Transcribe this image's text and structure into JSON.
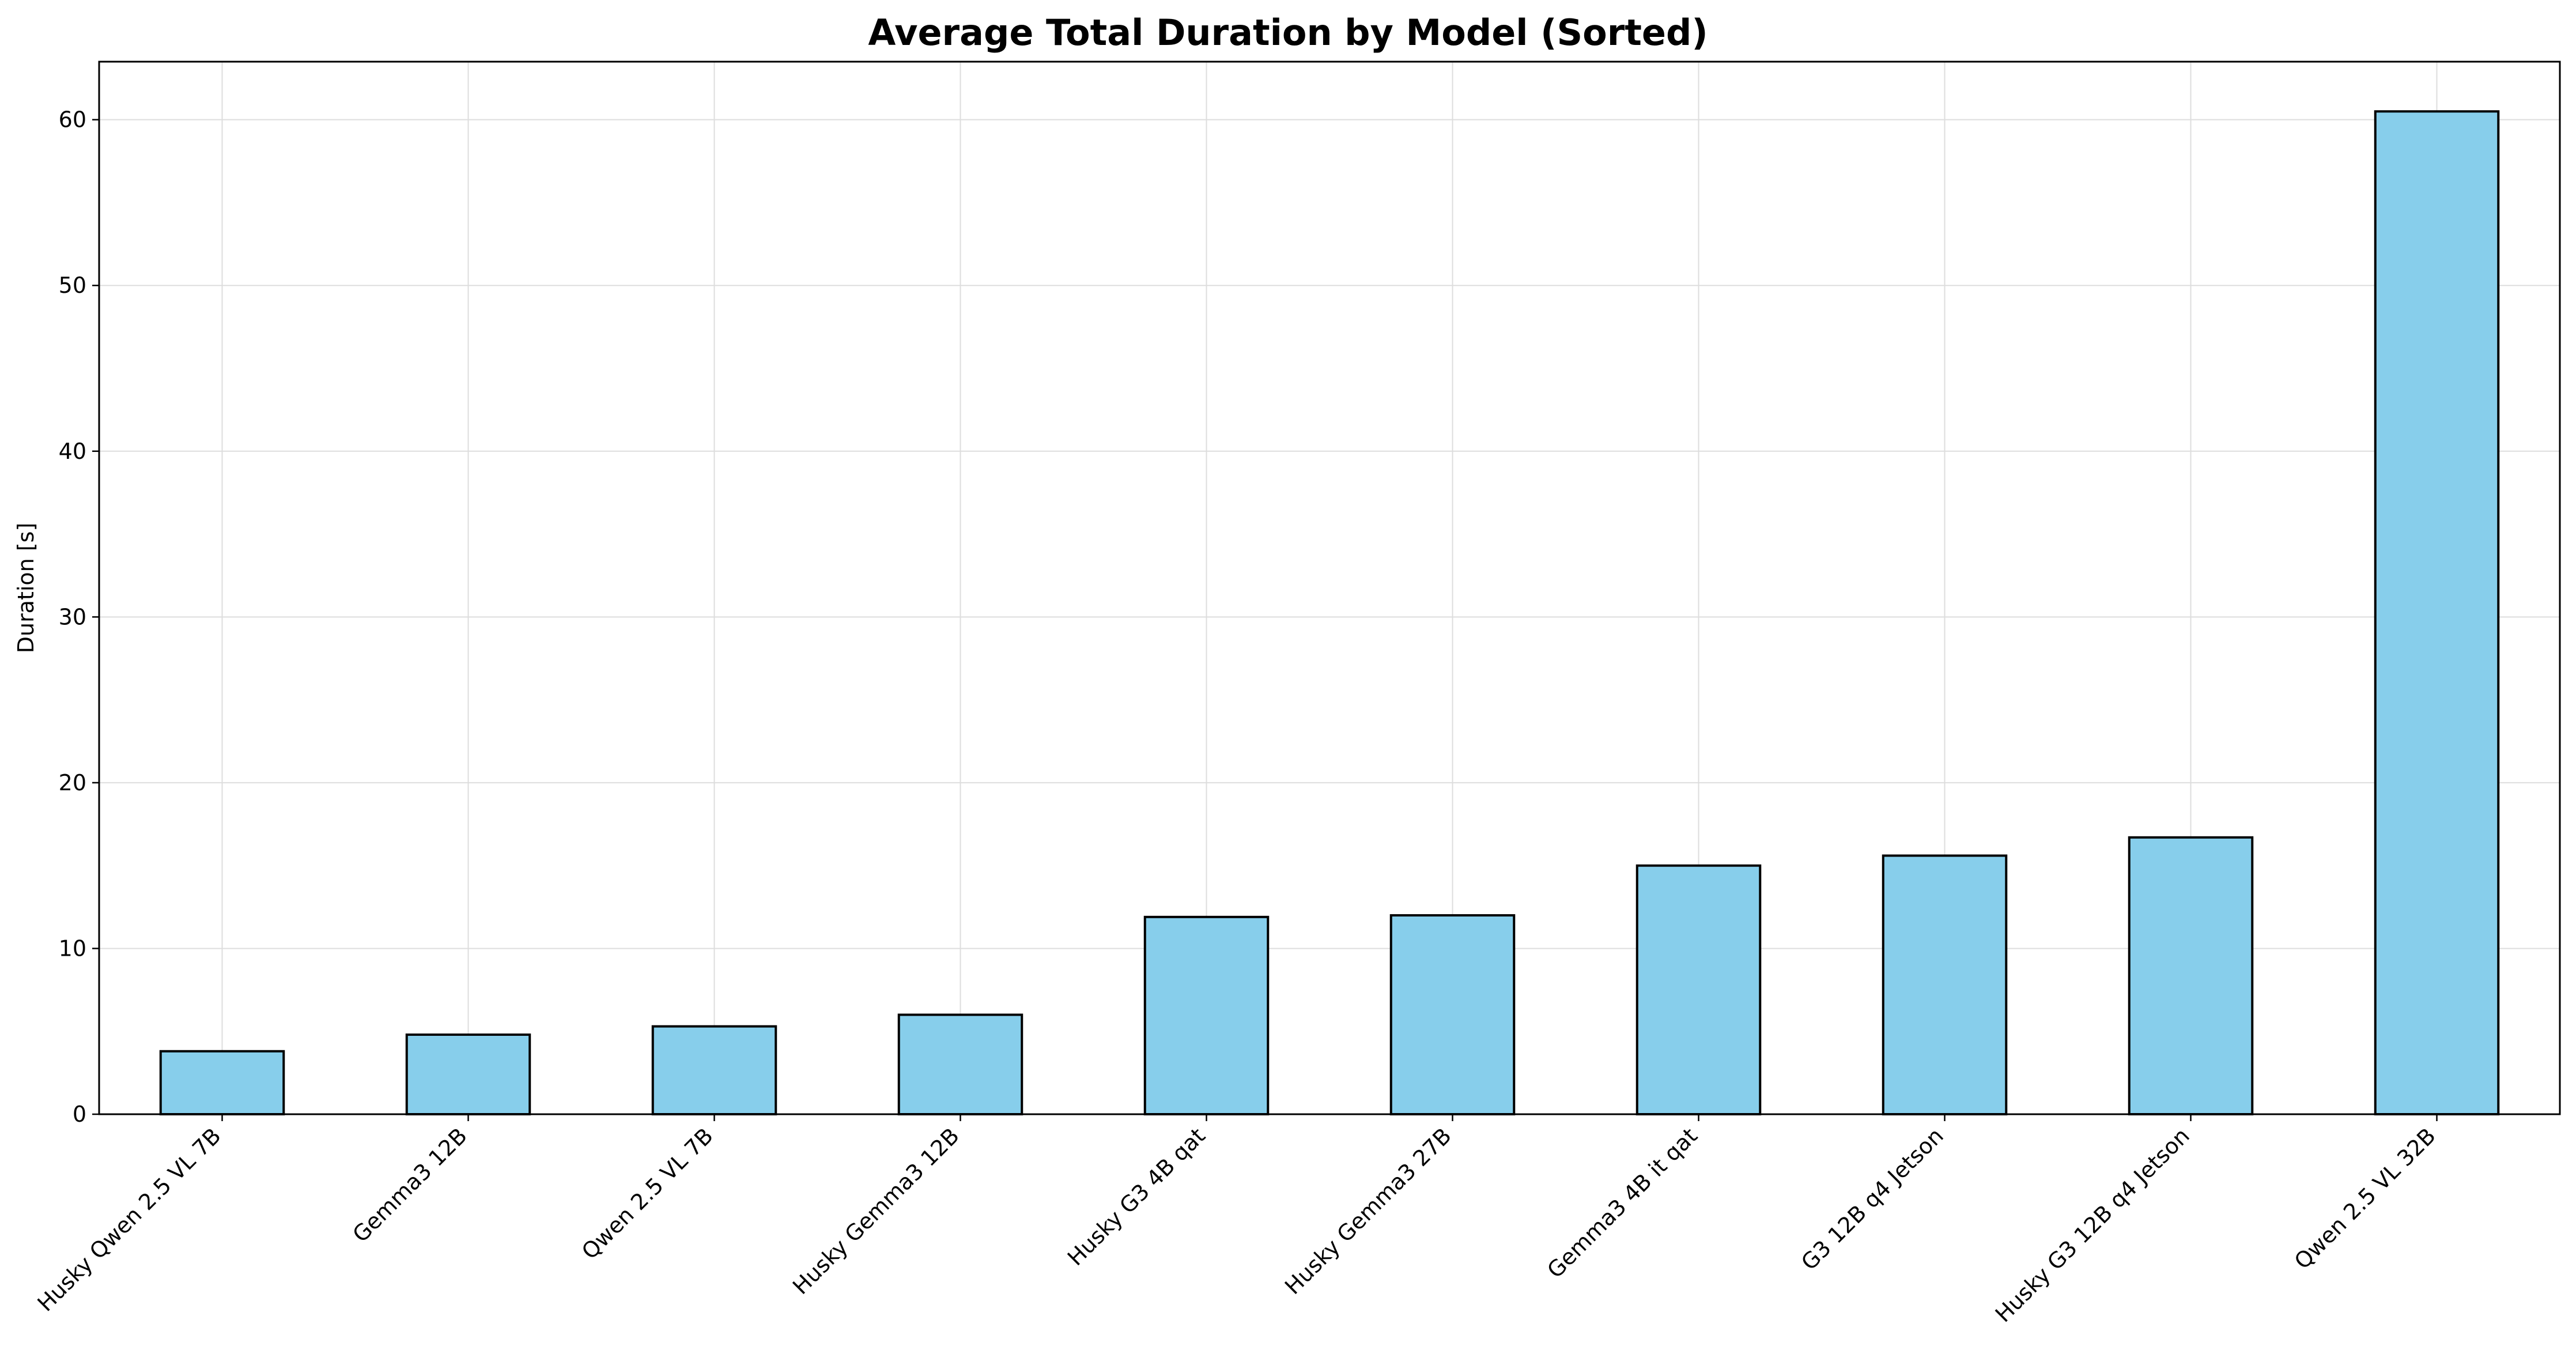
{
  "chart_data": {
    "type": "bar",
    "title": "Average Total Duration by Model (Sorted)",
    "xlabel": "",
    "ylabel": "Duration [s]",
    "categories": [
      "Husky Qwen 2.5 VL 7B",
      "Gemma3 12B",
      "Qwen 2.5 VL 7B",
      "Husky Gemma3 12B",
      "Husky G3 4B qat",
      "Husky Gemma3 27B",
      "Gemma3 4B it qat",
      "G3 12B q4 Jetson",
      "Husky G3 12B q4 Jetson",
      "Qwen 2.5 VL 32B"
    ],
    "values": [
      3.8,
      4.8,
      5.3,
      6.0,
      11.9,
      12.0,
      15.0,
      15.6,
      16.7,
      60.5
    ],
    "ylim": [
      0,
      63.5
    ],
    "yticks": [
      0,
      10,
      20,
      30,
      40,
      50,
      60
    ],
    "grid": true,
    "bar_color": "#87CEEB",
    "edge_color": "#000000"
  }
}
